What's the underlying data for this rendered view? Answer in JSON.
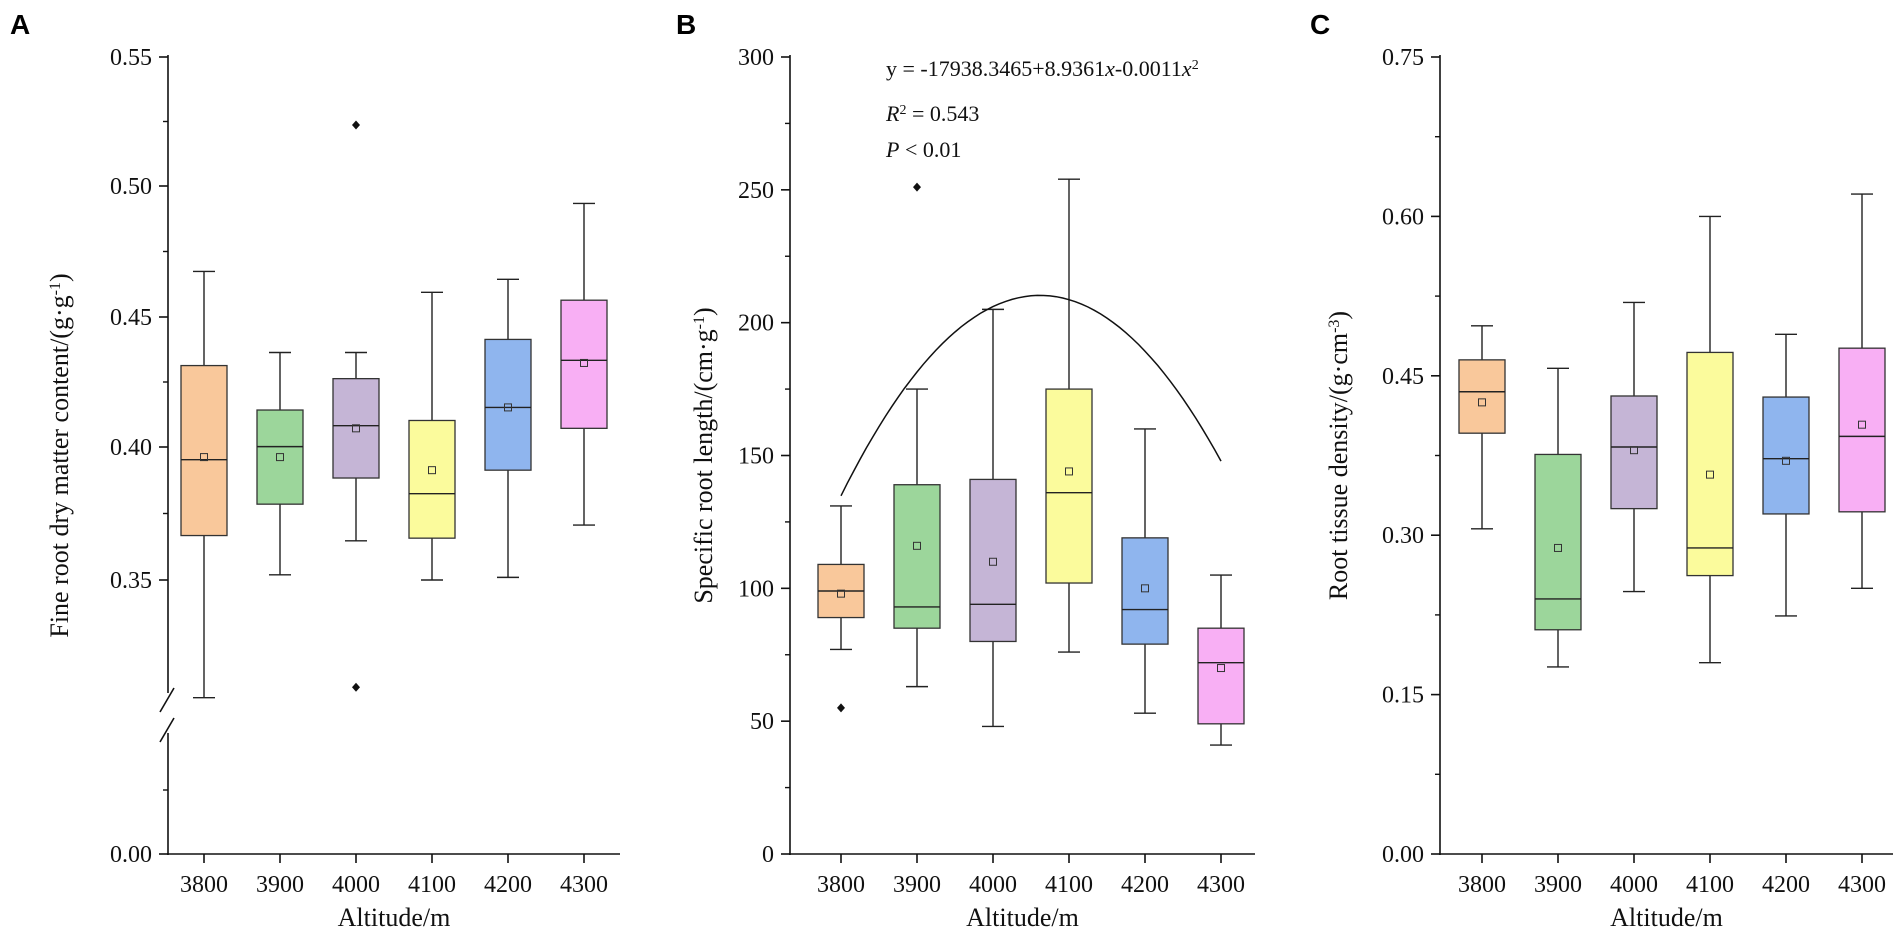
{
  "colors": {
    "3800": "#f9c89b",
    "3900": "#9cd69b",
    "4000": "#c5b5d6",
    "4100": "#fbfb9c",
    "4200": "#8fb5ee",
    "4300": "#f8aff4"
  },
  "chart_data": [
    {
      "type": "box",
      "panel_label": "A",
      "xlabel": "Altitude/m",
      "ylabel_main": "Fine root dry matter content/(g·g",
      "ylabel_sup": "-1",
      "ylabel_end": ")",
      "categories": [
        "3800",
        "3900",
        "4000",
        "4100",
        "4200",
        "4300"
      ],
      "y_ticks": [
        "0.00",
        "0.35",
        "0.40",
        "0.45",
        "0.50",
        "0.55"
      ],
      "axis_break": true,
      "ylim": [
        0.3,
        0.55
      ],
      "boxes": [
        {
          "min": 0.305,
          "q1": 0.367,
          "median": 0.396,
          "q3": 0.432,
          "max": 0.468,
          "mean": 0.397,
          "outliers": []
        },
        {
          "min": 0.352,
          "q1": 0.379,
          "median": 0.401,
          "q3": 0.415,
          "max": 0.437,
          "mean": 0.397,
          "outliers": []
        },
        {
          "min": 0.365,
          "q1": 0.389,
          "median": 0.409,
          "q3": 0.427,
          "max": 0.437,
          "mean": 0.408,
          "outliers": [
            0.524,
            0.309
          ]
        },
        {
          "min": 0.35,
          "q1": 0.366,
          "median": 0.383,
          "q3": 0.411,
          "max": 0.46,
          "mean": 0.392,
          "outliers": []
        },
        {
          "min": 0.351,
          "q1": 0.392,
          "median": 0.416,
          "q3": 0.442,
          "max": 0.465,
          "mean": 0.416,
          "outliers": []
        },
        {
          "min": 0.371,
          "q1": 0.408,
          "median": 0.434,
          "q3": 0.457,
          "max": 0.494,
          "mean": 0.433,
          "outliers": []
        }
      ]
    },
    {
      "type": "box",
      "panel_label": "B",
      "xlabel": "Altitude/m",
      "ylabel_main": "Specific root length/(cm·g",
      "ylabel_sup": "-1",
      "ylabel_end": ")",
      "categories": [
        "3800",
        "3900",
        "4000",
        "4100",
        "4200",
        "4300"
      ],
      "y_ticks": [
        "0",
        "50",
        "100",
        "150",
        "200",
        "250",
        "300"
      ],
      "ylim": [
        0,
        300
      ],
      "boxes": [
        {
          "min": 77,
          "q1": 89,
          "median": 99,
          "q3": 109,
          "max": 131,
          "mean": 98,
          "outliers": [
            55
          ]
        },
        {
          "min": 63,
          "q1": 85,
          "median": 93,
          "q3": 139,
          "max": 175,
          "mean": 116,
          "outliers": [
            251
          ]
        },
        {
          "min": 48,
          "q1": 80,
          "median": 94,
          "q3": 141,
          "max": 205,
          "mean": 110,
          "outliers": []
        },
        {
          "min": 76,
          "q1": 102,
          "median": 136,
          "q3": 175,
          "max": 254,
          "mean": 144,
          "outliers": []
        },
        {
          "min": 53,
          "q1": 79,
          "median": 92,
          "q3": 119,
          "max": 160,
          "mean": 100,
          "outliers": []
        },
        {
          "min": 41,
          "q1": 49,
          "median": 72,
          "q3": 85,
          "max": 105,
          "mean": 70,
          "outliers": []
        }
      ],
      "fit": {
        "intercept": -17938.3465,
        "b": 8.9361,
        "c": -0.0011,
        "x_range": [
          3800,
          4300
        ]
      },
      "equation_prefix": "y = -17938.3465+8.9361",
      "equation_mid": "-0.0011",
      "eq_var": "x",
      "eq_sup": "2",
      "r2_label": "R",
      "r2_sup": "2",
      "r2_value": " = 0.543",
      "p_label": "P",
      "p_value": " < 0.01"
    },
    {
      "type": "box",
      "panel_label": "C",
      "xlabel": "Altitude/m",
      "ylabel_main": "Root tissue density/(g·cm",
      "ylabel_sup": "-3",
      "ylabel_end": ")",
      "categories": [
        "3800",
        "3900",
        "4000",
        "4100",
        "4200",
        "4300"
      ],
      "y_ticks": [
        "0.00",
        "0.15",
        "0.30",
        "0.45",
        "0.60",
        "0.75"
      ],
      "ylim": [
        0,
        0.75
      ],
      "boxes": [
        {
          "min": 0.306,
          "q1": 0.396,
          "median": 0.435,
          "q3": 0.465,
          "max": 0.497,
          "mean": 0.425,
          "outliers": []
        },
        {
          "min": 0.176,
          "q1": 0.211,
          "median": 0.24,
          "q3": 0.376,
          "max": 0.457,
          "mean": 0.288,
          "outliers": []
        },
        {
          "min": 0.247,
          "q1": 0.325,
          "median": 0.383,
          "q3": 0.431,
          "max": 0.519,
          "mean": 0.38,
          "outliers": []
        },
        {
          "min": 0.18,
          "q1": 0.262,
          "median": 0.288,
          "q3": 0.472,
          "max": 0.6,
          "mean": 0.357,
          "outliers": []
        },
        {
          "min": 0.224,
          "q1": 0.32,
          "median": 0.372,
          "q3": 0.43,
          "max": 0.489,
          "mean": 0.37,
          "outliers": []
        },
        {
          "min": 0.25,
          "q1": 0.322,
          "median": 0.393,
          "q3": 0.476,
          "max": 0.621,
          "mean": 0.404,
          "outliers": []
        }
      ]
    }
  ]
}
